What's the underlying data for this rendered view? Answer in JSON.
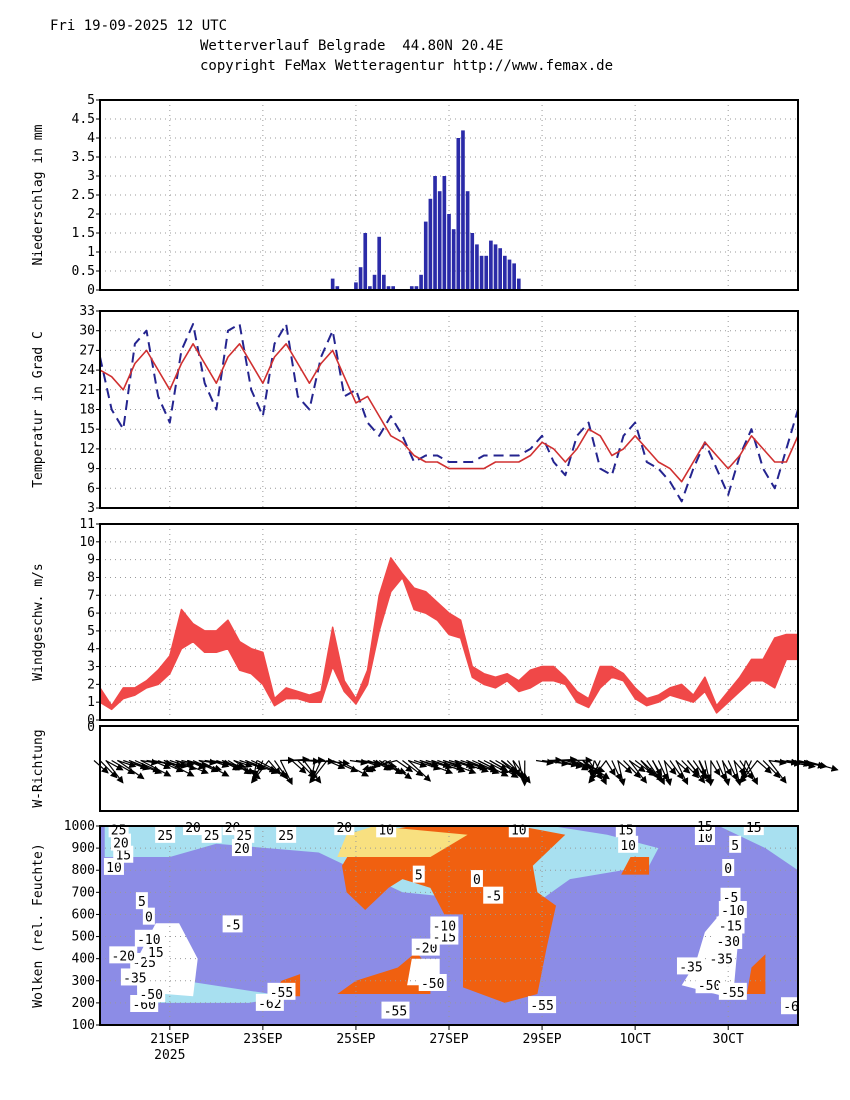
{
  "header": {
    "date": "Fri 19-09-2025 12 UTC",
    "title": "Wetterverlauf Belgrade  44.80N 20.4E",
    "copyright": "copyright FeMax Wetteragentur http://www.femax.de"
  },
  "colors": {
    "precip": "#2b2ba8",
    "temp_max": "#24248f",
    "temp_mean": "#d03030",
    "wind": "#f04848",
    "cloud_bg": "#8c8ce6",
    "cloud_light": "#a8e0f0",
    "cloud_mid": "#f8e080",
    "cloud_hot": "#f06010"
  },
  "x_axis": {
    "tick_labels": [
      "21SEP",
      "23SEP",
      "25SEP",
      "27SEP",
      "29SEP",
      "1OCT",
      "3OCT"
    ],
    "tick_days": [
      2,
      4,
      6,
      8,
      10,
      12,
      14
    ],
    "year_label": "2025",
    "range_days": [
      0.5,
      15.5
    ]
  },
  "chart_data": [
    {
      "type": "bar",
      "title": "Niederschlag",
      "ylabel": "Niederschlag  in  mm",
      "ylim": [
        0,
        5
      ],
      "yticks": [
        "0",
        "0.5",
        "1",
        "1.5",
        "2",
        "2.5",
        "3",
        "3.5",
        "4",
        "4.5",
        "5"
      ],
      "x_days": [
        5.5,
        5.6,
        6.0,
        6.1,
        6.2,
        6.3,
        6.4,
        6.5,
        6.6,
        6.7,
        6.8,
        7.2,
        7.3,
        7.4,
        7.5,
        7.6,
        7.7,
        7.8,
        7.9,
        8.0,
        8.1,
        8.2,
        8.3,
        8.4,
        8.5,
        8.6,
        8.7,
        8.8,
        8.9,
        9.0,
        9.1,
        9.2,
        9.3,
        9.4,
        9.5
      ],
      "values": [
        0.3,
        0.1,
        0.2,
        0.6,
        1.5,
        0.1,
        0.4,
        1.4,
        0.4,
        0.1,
        0.1,
        0.1,
        0.1,
        0.4,
        1.8,
        2.4,
        3.0,
        2.6,
        3.0,
        2.0,
        1.6,
        4.0,
        4.2,
        2.6,
        1.5,
        1.2,
        0.9,
        0.9,
        1.3,
        1.2,
        1.1,
        0.9,
        0.8,
        0.7,
        0.3
      ]
    },
    {
      "type": "line",
      "title": "Temperatur",
      "ylabel": "Temperatur  in  Grad  C",
      "ylim": [
        3,
        33
      ],
      "yticks": [
        "3",
        "6",
        "9",
        "12",
        "15",
        "18",
        "21",
        "24",
        "27",
        "30",
        "33"
      ],
      "series": [
        {
          "name": "max",
          "style": "dashed",
          "x": [
            0.5,
            0.75,
            1.0,
            1.25,
            1.5,
            1.75,
            2.0,
            2.25,
            2.5,
            2.75,
            3.0,
            3.25,
            3.5,
            3.75,
            4.0,
            4.25,
            4.5,
            4.75,
            5.0,
            5.25,
            5.5,
            5.75,
            6.0,
            6.25,
            6.5,
            6.75,
            7.0,
            7.25,
            7.5,
            7.75,
            8.0,
            8.25,
            8.5,
            8.75,
            9.0,
            9.25,
            9.5,
            9.75,
            10.0,
            10.25,
            10.5,
            10.75,
            11.0,
            11.25,
            11.5,
            11.75,
            12.0,
            12.25,
            12.5,
            12.75,
            13.0,
            13.25,
            13.5,
            13.75,
            14.0,
            14.25,
            14.5,
            14.75,
            15.0,
            15.25,
            15.5
          ],
          "values": [
            26,
            18,
            15,
            28,
            30,
            20,
            16,
            27,
            31,
            22,
            18,
            30,
            31,
            21,
            17,
            28,
            31,
            20,
            18,
            26,
            30,
            20,
            21,
            16,
            14,
            17,
            14,
            10,
            11,
            11,
            10,
            10,
            10,
            11,
            11,
            11,
            11,
            12,
            14,
            10,
            8,
            14,
            16,
            9,
            8,
            14,
            16,
            10,
            9,
            7,
            4,
            9,
            13,
            9,
            5,
            11,
            15,
            9,
            6,
            12,
            18
          ]
        },
        {
          "name": "mean",
          "style": "solid",
          "x": [
            0.5,
            0.75,
            1.0,
            1.25,
            1.5,
            1.75,
            2.0,
            2.25,
            2.5,
            2.75,
            3.0,
            3.25,
            3.5,
            3.75,
            4.0,
            4.25,
            4.5,
            4.75,
            5.0,
            5.25,
            5.5,
            5.75,
            6.0,
            6.25,
            6.5,
            6.75,
            7.0,
            7.25,
            7.5,
            7.75,
            8.0,
            8.25,
            8.5,
            8.75,
            9.0,
            9.25,
            9.5,
            9.75,
            10.0,
            10.25,
            10.5,
            10.75,
            11.0,
            11.25,
            11.5,
            11.75,
            12.0,
            12.25,
            12.5,
            12.75,
            13.0,
            13.25,
            13.5,
            13.75,
            14.0,
            14.25,
            14.5,
            14.75,
            15.0,
            15.25,
            15.5
          ],
          "values": [
            24,
            23,
            21,
            25,
            27,
            24,
            21,
            25,
            28,
            25,
            22,
            26,
            28,
            25,
            22,
            26,
            28,
            25,
            22,
            25,
            27,
            23,
            19,
            20,
            17,
            14,
            13,
            11,
            10,
            10,
            9,
            9,
            9,
            9,
            10,
            10,
            10,
            11,
            13,
            12,
            10,
            12,
            15,
            14,
            11,
            12,
            14,
            12,
            10,
            9,
            7,
            10,
            13,
            11,
            9,
            11,
            14,
            12,
            10,
            10,
            14
          ]
        }
      ]
    },
    {
      "type": "area",
      "title": "Windgeschwindigkeit",
      "ylabel": "Windgeschw.  m/s",
      "ylim": [
        0,
        11
      ],
      "yticks": [
        "0",
        "1",
        "2",
        "3",
        "4",
        "5",
        "6",
        "7",
        "8",
        "9",
        "10",
        "11"
      ],
      "x": [
        0.5,
        0.75,
        1.0,
        1.25,
        1.5,
        1.75,
        2.0,
        2.25,
        2.5,
        2.75,
        3.0,
        3.25,
        3.5,
        3.75,
        4.0,
        4.25,
        4.5,
        4.75,
        5.0,
        5.25,
        5.5,
        5.75,
        6.0,
        6.25,
        6.5,
        6.75,
        7.0,
        7.25,
        7.5,
        7.75,
        8.0,
        8.25,
        8.5,
        8.75,
        9.0,
        9.25,
        9.5,
        9.75,
        10.0,
        10.25,
        10.5,
        10.75,
        11.0,
        11.25,
        11.5,
        11.75,
        12.0,
        12.25,
        12.5,
        12.75,
        13.0,
        13.25,
        13.5,
        13.75,
        14.0,
        14.25,
        14.5,
        14.75,
        15.0,
        15.25,
        15.5
      ],
      "series": [
        {
          "name": "low",
          "values": [
            1.0,
            0.6,
            1.2,
            1.4,
            1.8,
            2.0,
            2.6,
            4.0,
            4.4,
            3.8,
            3.8,
            4.0,
            2.8,
            2.6,
            2.0,
            0.8,
            1.2,
            1.2,
            1.0,
            1.0,
            3.0,
            1.6,
            0.9,
            2.0,
            5.0,
            7.2,
            8.0,
            6.2,
            6.0,
            5.6,
            4.8,
            4.6,
            2.4,
            2.0,
            1.8,
            2.2,
            1.6,
            1.8,
            2.2,
            2.2,
            2.0,
            1.0,
            0.7,
            1.8,
            2.4,
            2.2,
            1.2,
            0.8,
            1.0,
            1.4,
            1.2,
            1.0,
            1.6,
            0.4,
            1.0,
            1.6,
            2.2,
            2.2,
            1.8,
            3.4,
            3.4
          ]
        },
        {
          "name": "high",
          "values": [
            1.8,
            0.8,
            1.8,
            1.8,
            2.2,
            2.8,
            3.6,
            6.2,
            5.4,
            5.0,
            5.0,
            5.6,
            4.4,
            4.0,
            3.8,
            1.2,
            1.8,
            1.6,
            1.4,
            1.6,
            5.2,
            2.2,
            1.2,
            2.8,
            7.0,
            9.1,
            8.2,
            7.4,
            7.2,
            6.6,
            6.0,
            5.6,
            3.0,
            2.6,
            2.4,
            2.6,
            2.2,
            2.8,
            3.0,
            3.0,
            2.4,
            1.6,
            1.2,
            3.0,
            3.0,
            2.6,
            1.8,
            1.2,
            1.4,
            1.8,
            2.0,
            1.4,
            2.4,
            0.8,
            1.6,
            2.4,
            3.4,
            3.4,
            4.6,
            4.8,
            4.8
          ]
        }
      ]
    },
    {
      "type": "scatter",
      "title": "Windrichtung",
      "ylabel": "W-Richtung",
      "x": [
        0.5,
        0.75,
        1.0,
        1.25,
        1.5,
        1.75,
        2.0,
        2.25,
        2.5,
        2.75,
        3.0,
        3.25,
        3.5,
        3.75,
        4.0,
        4.25,
        4.5,
        4.75,
        5.0,
        5.25,
        5.5,
        6.0,
        6.25,
        6.5,
        6.75,
        7.0,
        7.25,
        7.5,
        7.75,
        8.0,
        8.25,
        8.5,
        8.75,
        9.0,
        9.25,
        9.5,
        10.0,
        10.25,
        10.5,
        10.75,
        11.0,
        11.25,
        11.5,
        11.75,
        12.0,
        12.25,
        12.5,
        12.75,
        13.0,
        13.25,
        13.5,
        13.75,
        14.0,
        14.25,
        14.5,
        14.75,
        15.0,
        15.25,
        15.5
      ],
      "values": [
        140,
        120,
        100,
        110,
        80,
        110,
        100,
        90,
        110,
        80,
        100,
        120,
        100,
        110,
        200,
        150,
        60,
        140,
        70,
        200,
        110,
        80,
        100,
        120,
        250,
        130,
        100,
        95,
        100,
        95,
        100,
        110,
        115,
        120,
        140,
        170,
        80,
        60,
        95,
        120,
        150,
        200,
        160,
        140,
        130,
        150,
        160,
        150,
        140,
        150,
        170,
        160,
        160,
        150,
        200,
        140,
        80,
        80,
        90
      ]
    },
    {
      "type": "heatmap",
      "title": "Wolken",
      "ylabel": "Wolken  (rel. Feuchte)",
      "ylim": [
        100,
        1000
      ],
      "yticks": [
        "100",
        "200",
        "300",
        "400",
        "500",
        "600",
        "700",
        "800",
        "900",
        "1000"
      ],
      "contour_labels": [
        {
          "day": 1.45,
          "p": 195,
          "text": "-60"
        },
        {
          "day": 1.6,
          "p": 240,
          "text": "-50"
        },
        {
          "day": 1.25,
          "p": 315,
          "text": "-35"
        },
        {
          "day": 1.45,
          "p": 385,
          "text": "-25"
        },
        {
          "day": 1.0,
          "p": 415,
          "text": "-20"
        },
        {
          "day": 1.7,
          "p": 430,
          "text": "15"
        },
        {
          "day": 1.55,
          "p": 490,
          "text": "-10"
        },
        {
          "day": 1.55,
          "p": 590,
          "text": "0"
        },
        {
          "day": 1.4,
          "p": 660,
          "text": "5"
        },
        {
          "day": 3.35,
          "p": 555,
          "text": "-5"
        },
        {
          "day": 4.15,
          "p": 200,
          "text": "-62"
        },
        {
          "day": 4.4,
          "p": 250,
          "text": "-55"
        },
        {
          "day": 6.85,
          "p": 165,
          "text": "-55"
        },
        {
          "day": 7.65,
          "p": 290,
          "text": "-50"
        },
        {
          "day": 7.5,
          "p": 450,
          "text": "-20"
        },
        {
          "day": 7.9,
          "p": 500,
          "text": "-15"
        },
        {
          "day": 7.9,
          "p": 550,
          "text": "-10"
        },
        {
          "day": 7.35,
          "p": 780,
          "text": "5"
        },
        {
          "day": 8.6,
          "p": 760,
          "text": "0"
        },
        {
          "day": 8.95,
          "p": 685,
          "text": "-5"
        },
        {
          "day": 10.0,
          "p": 190,
          "text": "-55"
        },
        {
          "day": 11.85,
          "p": 915,
          "text": "10"
        },
        {
          "day": 11.8,
          "p": 985,
          "text": "15"
        },
        {
          "day": 9.5,
          "p": 985,
          "text": "10"
        },
        {
          "day": 6.65,
          "p": 985,
          "text": "10"
        },
        {
          "day": 0.8,
          "p": 815,
          "text": "10"
        },
        {
          "day": 1.0,
          "p": 870,
          "text": "15"
        },
        {
          "day": 0.95,
          "p": 925,
          "text": "20"
        },
        {
          "day": 0.9,
          "p": 985,
          "text": "25"
        },
        {
          "day": 1.9,
          "p": 960,
          "text": "25"
        },
        {
          "day": 2.5,
          "p": 995,
          "text": "20"
        },
        {
          "day": 2.9,
          "p": 960,
          "text": "25"
        },
        {
          "day": 3.35,
          "p": 995,
          "text": "20"
        },
        {
          "day": 3.55,
          "p": 900,
          "text": "20"
        },
        {
          "day": 3.6,
          "p": 960,
          "text": "25"
        },
        {
          "day": 4.5,
          "p": 960,
          "text": "25"
        },
        {
          "day": 5.75,
          "p": 995,
          "text": "20"
        },
        {
          "day": 13.2,
          "p": 365,
          "text": "-35"
        },
        {
          "day": 13.6,
          "p": 280,
          "text": "-50"
        },
        {
          "day": 13.85,
          "p": 400,
          "text": "-35"
        },
        {
          "day": 14.1,
          "p": 250,
          "text": "-55"
        },
        {
          "day": 14.0,
          "p": 480,
          "text": "-30"
        },
        {
          "day": 14.05,
          "p": 550,
          "text": "-15"
        },
        {
          "day": 14.1,
          "p": 620,
          "text": "-10"
        },
        {
          "day": 14.05,
          "p": 680,
          "text": "-5"
        },
        {
          "day": 14.0,
          "p": 810,
          "text": "0"
        },
        {
          "day": 14.15,
          "p": 915,
          "text": "5"
        },
        {
          "day": 13.5,
          "p": 950,
          "text": "10"
        },
        {
          "day": 13.5,
          "p": 1000,
          "text": "15"
        },
        {
          "day": 14.55,
          "p": 995,
          "text": "15"
        },
        {
          "day": 15.35,
          "p": 185,
          "text": "-6"
        }
      ]
    }
  ]
}
